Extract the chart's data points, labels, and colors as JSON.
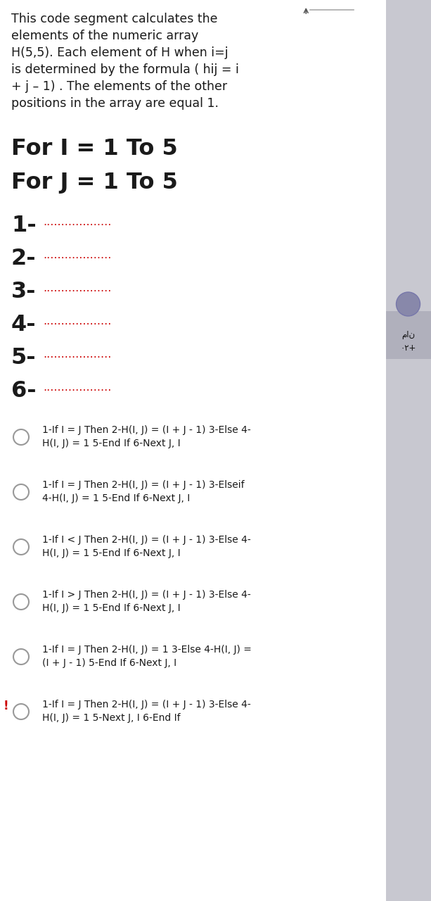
{
  "bg_color": "#f2f2f2",
  "white_bg": "#ffffff",
  "sidebar_bg": "#c8c8d0",
  "desc_lines": [
    "This code segment calculates the",
    "elements of the numeric array",
    "H(5,5). Each element of H when i=j",
    "is determined by the formula ( hij = i",
    "+ j – 1) . The elements of the other",
    "positions in the array are equal 1."
  ],
  "for_lines": [
    "For I = 1 To 5",
    "For J = 1 To 5"
  ],
  "num_labels": [
    "1-",
    "2-",
    "3-",
    "4-",
    "5-",
    "6-"
  ],
  "dot_str": "...................",
  "dot_color": "#cc0000",
  "text_color": "#1a1a1a",
  "options": [
    {
      "selected": false,
      "line1": "1-If I = J Then 2-H(I, J) = (I + J - 1) 3-Else 4-",
      "line2": "H(I, J) = 1 5-End If 6-Next J, I"
    },
    {
      "selected": false,
      "line1": "1-If I = J Then 2-H(I, J) = (I + J - 1) 3-Elseif",
      "line2": "4-H(I, J) = 1 5-End If 6-Next J, I"
    },
    {
      "selected": false,
      "line1": "1-If I < J Then 2-H(I, J) = (I + J - 1) 3-Else 4-",
      "line2": "H(I, J) = 1 5-End If 6-Next J, I"
    },
    {
      "selected": false,
      "line1": "1-If I > J Then 2-H(I, J) = (I + J - 1) 3-Else 4-",
      "line2": "H(I, J) = 1 5-End If 6-Next J, I"
    },
    {
      "selected": false,
      "line1": "1-If I = J Then 2-H(I, J) = 1 3-Else 4-H(I, J) =",
      "line2": "(I + J - 1) 5-End If 6-Next J, I"
    },
    {
      "selected": true,
      "line1": "1-If I = J Then 2-H(I, J) = (I + J - 1) 3-Else 4-",
      "line2": "H(I, J) = 1 5-Next J, I 6-End If"
    }
  ],
  "excl_color": "#cc0000",
  "fig_w": 6.13,
  "fig_h": 12.8,
  "dpi": 100
}
